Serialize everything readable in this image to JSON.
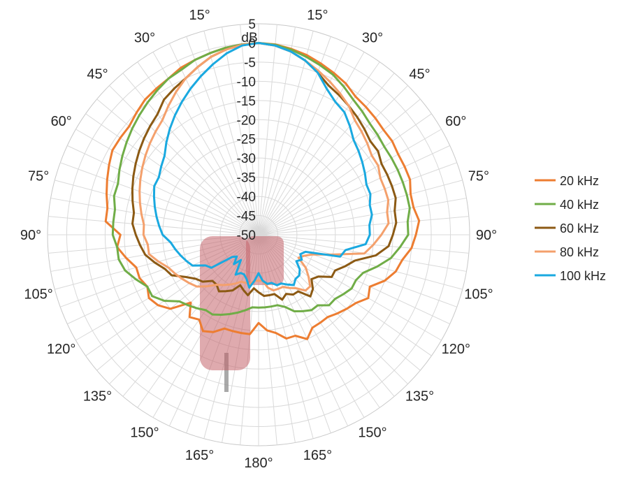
{
  "chart_data": {
    "type": "polar-line",
    "unit_label": "dB",
    "r_ticks": [
      5,
      0,
      -5,
      -10,
      -15,
      -20,
      -25,
      -30,
      -35,
      -40,
      -45,
      -50
    ],
    "r_range": [
      -50,
      5
    ],
    "angle_labels": [
      "15°",
      "30°",
      "45°",
      "60°",
      "75°",
      "90°",
      "105°",
      "120°",
      "135°",
      "150°",
      "165°",
      "180°",
      "165°",
      "150°",
      "135°",
      "120°",
      "105°",
      "90°",
      "75°",
      "60°",
      "45°",
      "30°",
      "15°"
    ],
    "grid": true,
    "legend_position": "right",
    "angles_deg": [
      0,
      5,
      10,
      15,
      20,
      25,
      30,
      35,
      40,
      45,
      50,
      55,
      60,
      65,
      70,
      75,
      80,
      85,
      90,
      95,
      100,
      105,
      110,
      115,
      120,
      125,
      130,
      135,
      140,
      145,
      150,
      155,
      160,
      165,
      170,
      175,
      180,
      185,
      190,
      195,
      200,
      205,
      210,
      215,
      220,
      225,
      230,
      235,
      240,
      245,
      250,
      255,
      260,
      265,
      270,
      275,
      280,
      285,
      290,
      295,
      300,
      305,
      310,
      315,
      320,
      325,
      330,
      335,
      340,
      345,
      350,
      355
    ],
    "series": [
      {
        "name": "20 kHz",
        "color": "#ed7d31",
        "values": [
          0,
          -0.2,
          -0.8,
          -1.5,
          -2.5,
          -3.5,
          -4.5,
          -6,
          -6.5,
          -7,
          -7.5,
          -7.5,
          -8,
          -8,
          -8,
          -9,
          -9,
          -8,
          -9,
          -10,
          -12,
          -13,
          -15,
          -18,
          -17,
          -19,
          -20,
          -21,
          -22,
          -22,
          -22,
          -20,
          -22,
          -22,
          -24,
          -25,
          -27,
          -24,
          -24,
          -24,
          -24,
          -22,
          -21,
          -23,
          -22,
          -25,
          -20,
          -18,
          -17,
          -18,
          -17,
          -17,
          -15,
          -13,
          -14,
          -10,
          -10,
          -9,
          -8,
          -7,
          -6,
          -6,
          -6,
          -5,
          -4,
          -3.5,
          -3,
          -2,
          -1.5,
          -1,
          -0.5,
          -0.2
        ]
      },
      {
        "name": "40 kHz",
        "color": "#70ad47",
        "values": [
          0,
          -0.3,
          -1,
          -2,
          -3,
          -4,
          -5.5,
          -7,
          -8,
          -9,
          -9.5,
          -10,
          -10,
          -10,
          -10,
          -10,
          -10,
          -11,
          -11,
          -13,
          -15,
          -18,
          -21,
          -22,
          -22,
          -23,
          -24,
          -24,
          -26,
          -26,
          -27,
          -28,
          -30,
          -31,
          -31,
          -31,
          -31,
          -31,
          -30,
          -29,
          -28,
          -27,
          -26,
          -26,
          -25,
          -24,
          -23,
          -20,
          -18,
          -18,
          -16,
          -14,
          -13,
          -13,
          -12,
          -12,
          -12,
          -11,
          -11,
          -10,
          -9,
          -8,
          -7,
          -6,
          -5,
          -4,
          -3,
          -2.5,
          -1.5,
          -1,
          -0.5,
          -0.2
        ]
      },
      {
        "name": "60 kHz",
        "color": "#8c5a14",
        "values": [
          0,
          -0.5,
          -1.5,
          -3,
          -5,
          -7,
          -8,
          -9,
          -10,
          -11,
          -12,
          -12,
          -13,
          -13,
          -13,
          -13,
          -14,
          -14,
          -15,
          -16,
          -19,
          -24,
          -26,
          -28,
          -28,
          -31,
          -32,
          -30,
          -29,
          -32,
          -32,
          -33,
          -32,
          -34,
          -34,
          -34,
          -35,
          -36,
          -34,
          -35,
          -36,
          -34,
          -33,
          -32,
          -33,
          -33,
          -31,
          -30,
          -28,
          -25,
          -24,
          -22,
          -20,
          -19,
          -18,
          -17,
          -17,
          -16,
          -15,
          -14,
          -13,
          -12,
          -11,
          -10,
          -9,
          -7,
          -6,
          -5,
          -3.5,
          -2,
          -1,
          -0.3
        ]
      },
      {
        "name": "80 kHz",
        "color": "#f4a06c",
        "values": [
          0,
          -0.5,
          -1.5,
          -3,
          -4.5,
          -6,
          -7.5,
          -9,
          -11,
          -12,
          -13,
          -14,
          -14,
          -15,
          -15,
          -15,
          -16,
          -16,
          -18,
          -20,
          -22,
          -30,
          -35,
          -37,
          -38,
          -35,
          -33,
          -31,
          -31,
          -33,
          -34,
          -35,
          -35,
          -35,
          -36,
          -38,
          -38,
          -38,
          -37,
          -37,
          -37,
          -36,
          -35,
          -34,
          -33,
          -31,
          -29,
          -28,
          -27,
          -26,
          -25,
          -23,
          -21,
          -21,
          -20,
          -20,
          -19,
          -18,
          -17,
          -16,
          -15,
          -14,
          -13,
          -12,
          -11,
          -9,
          -7,
          -5,
          -3.5,
          -2,
          -1,
          -0.3
        ]
      },
      {
        "name": "100 kHz",
        "color": "#1aa9e0",
        "values": [
          0,
          -0.5,
          -1.5,
          -3,
          -5,
          -8,
          -10,
          -11,
          -13,
          -15,
          -16,
          -17,
          -18,
          -19,
          -19,
          -20,
          -20,
          -21,
          -21,
          -22,
          -27,
          -28,
          -37,
          -38,
          -37,
          -38,
          -36,
          -35,
          -35,
          -34,
          -35,
          -36,
          -36,
          -37,
          -37,
          -38,
          -40,
          -38,
          -36,
          -38,
          -39,
          -39,
          -38,
          -42,
          -40,
          -42,
          -41,
          -35,
          -34,
          -31,
          -30,
          -29,
          -28,
          -27,
          -25,
          -24,
          -23,
          -22,
          -21,
          -20,
          -20,
          -19,
          -18,
          -16,
          -14,
          -12,
          -10,
          -8,
          -6,
          -4,
          -2,
          -0.5
        ]
      }
    ]
  },
  "microphone": {
    "body_color": "#c4646b",
    "cable_color": "#8c8c8c"
  }
}
